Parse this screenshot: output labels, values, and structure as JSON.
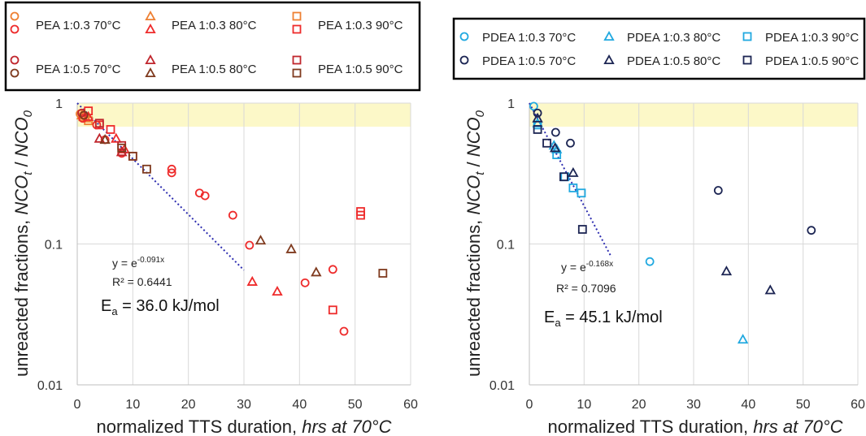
{
  "chart_data": [
    {
      "type": "scatter",
      "title": "",
      "xlabel": "normalized TTS duration,",
      "xlabel_italic": "hrs at 70°C",
      "ylabel": "unreacted fractions,",
      "ylabel_italic": "NCO",
      "ylabel_sub1": "t",
      "ylabel_sub2": "0",
      "yscale": "log",
      "xlim": [
        0,
        60
      ],
      "ylim": [
        0.01,
        1
      ],
      "xticks": [
        "0",
        "10",
        "20",
        "30",
        "40",
        "50",
        "60"
      ],
      "yticks": [
        "0.01",
        "0.1",
        "1"
      ],
      "grid": true,
      "highlight_band": {
        "ymin": 0.68,
        "ymax": 1,
        "color": "#fcf8c8"
      },
      "legend": {
        "position": "top",
        "columns": 3
      },
      "fit": {
        "x0": 0,
        "x1": 30,
        "k": 0.091,
        "color": "#2e2eb0"
      },
      "annotations": {
        "eq_prefix": "y = e",
        "eq_exp": "-0.091x",
        "r2": "R² = 0.6441",
        "ea_prefix": "E",
        "ea_sub": "a",
        "ea_value": " = 36.0 kJ/mol"
      },
      "series": [
        {
          "name": "PEA 1:0.3 70°C",
          "marker": "circle",
          "color": "#ee8033",
          "x": [
            0.5,
            1.5
          ],
          "y": [
            0.84,
            0.8
          ]
        },
        {
          "name": "PEA 1:0.3 80°C",
          "marker": "triangle",
          "color": "#ee8033",
          "x": [
            0.8,
            1.6
          ],
          "y": [
            0.82,
            0.78
          ]
        },
        {
          "name": "PEA 1:0.3 90°C",
          "marker": "square",
          "color": "#ee8033",
          "x": [
            1,
            2
          ],
          "y": [
            0.8,
            0.75
          ]
        },
        {
          "name": "",
          "marker": "circle",
          "color": "#ee2b2b",
          "x": [
            1,
            3.5,
            5,
            8,
            17,
            17,
            22,
            23,
            28,
            31,
            41,
            46,
            48
          ],
          "y": [
            0.78,
            0.7,
            0.55,
            0.44,
            0.34,
            0.32,
            0.23,
            0.22,
            0.16,
            0.098,
            0.053,
            0.066,
            0.024
          ]
        },
        {
          "name": "",
          "marker": "triangle",
          "color": "#ee2b2b",
          "x": [
            2,
            7,
            8,
            8.5,
            31.5,
            36
          ],
          "y": [
            0.8,
            0.56,
            0.45,
            0.47,
            0.054,
            0.046
          ]
        },
        {
          "name": "",
          "marker": "square",
          "color": "#ee2b2b",
          "x": [
            2,
            4,
            6,
            10,
            46,
            51,
            51
          ],
          "y": [
            0.88,
            0.7,
            0.65,
            0.42,
            0.034,
            0.17,
            0.16
          ]
        },
        {
          "name": "PEA 1:0.5 70°C",
          "marker": "circle",
          "color": "#c0262d",
          "x": [
            0.8
          ],
          "y": [
            0.85
          ]
        },
        {
          "name": "",
          "marker": "circle",
          "color": "#7f3a1e",
          "x": [
            1.2
          ],
          "y": [
            0.82
          ]
        },
        {
          "name": "PEA 1:0.5 80°C",
          "marker": "triangle",
          "color": "#c0262d",
          "x": [
            4,
            8
          ],
          "y": [
            0.56,
            0.45
          ]
        },
        {
          "name": "",
          "marker": "triangle",
          "color": "#7f3a1e",
          "x": [
            5,
            33,
            38.5,
            43
          ],
          "y": [
            0.55,
            0.106,
            0.092,
            0.063
          ]
        },
        {
          "name": "PEA 1:0.5 90°C",
          "marker": "square",
          "color": "#c0262d",
          "x": [
            4,
            8
          ],
          "y": [
            0.72,
            0.5
          ]
        },
        {
          "name": "",
          "marker": "square",
          "color": "#7f3a1e",
          "x": [
            8,
            10,
            12.5,
            55
          ],
          "y": [
            0.48,
            0.42,
            0.34,
            0.062
          ]
        }
      ]
    },
    {
      "type": "scatter",
      "title": "",
      "xlabel": "normalized TTS duration,",
      "xlabel_italic": "hrs at 70°C",
      "ylabel": "unreacted fractions,",
      "ylabel_italic": "NCO",
      "ylabel_sub1": "t",
      "ylabel_sub2": "0",
      "yscale": "log",
      "xlim": [
        0,
        60
      ],
      "ylim": [
        0.01,
        1
      ],
      "xticks": [
        "0",
        "10",
        "20",
        "30",
        "40",
        "50",
        "60"
      ],
      "yticks": [
        "0.01",
        "0.1",
        "1"
      ],
      "grid": true,
      "highlight_band": {
        "ymin": 0.68,
        "ymax": 1,
        "color": "#fcf8c8"
      },
      "legend": {
        "position": "top",
        "columns": 3
      },
      "fit": {
        "x0": 0,
        "x1": 15,
        "k": 0.168,
        "color": "#2e2eb0"
      },
      "annotations": {
        "eq_prefix": "y = e",
        "eq_exp": "-0.168x",
        "r2": "R² = 0.7096",
        "ea_prefix": "E",
        "ea_sub": "a",
        "ea_value": " =  45.1  kJ/mol"
      },
      "series": [
        {
          "name": "PDEA 1:0.3 70°C",
          "marker": "circle",
          "color": "#21a9e0",
          "x": [
            0.8,
            22
          ],
          "y": [
            0.95,
            0.075
          ]
        },
        {
          "name": "PDEA 1:0.3 80°C",
          "marker": "triangle",
          "color": "#21a9e0",
          "x": [
            1.5,
            4.5,
            5,
            39
          ],
          "y": [
            0.72,
            0.5,
            0.47,
            0.021
          ]
        },
        {
          "name": "PDEA 1:0.3 90°C",
          "marker": "square",
          "color": "#21a9e0",
          "x": [
            1.5,
            5,
            6.5,
            8,
            9.5
          ],
          "y": [
            0.7,
            0.43,
            0.3,
            0.25,
            0.23
          ]
        },
        {
          "name": "PDEA 1:0.5 70°C",
          "marker": "circle",
          "color": "#1c2553",
          "x": [
            1.5,
            4.8,
            7.5,
            34.5,
            51.5
          ],
          "y": [
            0.85,
            0.62,
            0.52,
            0.24,
            0.125
          ]
        },
        {
          "name": "PDEA 1:0.5 80°C",
          "marker": "triangle",
          "color": "#1c2553",
          "x": [
            1.5,
            4.7,
            8,
            36,
            44
          ],
          "y": [
            0.78,
            0.48,
            0.32,
            0.064,
            0.047
          ]
        },
        {
          "name": "PDEA 1:0.5 90°C",
          "marker": "square",
          "color": "#1c2553",
          "x": [
            1.5,
            3.2,
            6.3,
            9.7
          ],
          "y": [
            0.65,
            0.52,
            0.3,
            0.127
          ]
        }
      ]
    }
  ],
  "legends": [
    {
      "rows": [
        [
          {
            "label": "PEA 1:0.3 70°C",
            "marks": [
              {
                "m": "circle",
                "c": "#ee8033"
              },
              {
                "m": "circle",
                "c": "#ee2b2b"
              }
            ]
          },
          {
            "label": "PEA 1:0.3 80°C",
            "marks": [
              {
                "m": "triangle",
                "c": "#ee8033"
              },
              {
                "m": "triangle",
                "c": "#ee2b2b"
              }
            ]
          },
          {
            "label": "PEA 1:0.3 90°C",
            "marks": [
              {
                "m": "square",
                "c": "#ee8033"
              },
              {
                "m": "square",
                "c": "#ee2b2b"
              }
            ]
          }
        ],
        [
          {
            "label": "PEA 1:0.5 70°C",
            "marks": [
              {
                "m": "circle",
                "c": "#c0262d"
              },
              {
                "m": "circle",
                "c": "#7f3a1e"
              }
            ]
          },
          {
            "label": "PEA 1:0.5 80°C",
            "marks": [
              {
                "m": "triangle",
                "c": "#c0262d"
              },
              {
                "m": "triangle",
                "c": "#7f3a1e"
              }
            ]
          },
          {
            "label": "PEA 1:0.5 90°C",
            "marks": [
              {
                "m": "square",
                "c": "#c0262d"
              },
              {
                "m": "square",
                "c": "#7f3a1e"
              }
            ]
          }
        ]
      ]
    },
    {
      "rows": [
        [
          {
            "label": "PDEA 1:0.3 70°C",
            "marks": [
              {
                "m": "circle",
                "c": "#21a9e0"
              }
            ]
          },
          {
            "label": "PDEA 1:0.3 80°C",
            "marks": [
              {
                "m": "triangle",
                "c": "#21a9e0"
              }
            ]
          },
          {
            "label": "PDEA 1:0.3 90°C",
            "marks": [
              {
                "m": "square",
                "c": "#21a9e0"
              }
            ]
          }
        ],
        [
          {
            "label": "PDEA 1:0.5 70°C",
            "marks": [
              {
                "m": "circle",
                "c": "#1c2553"
              }
            ]
          },
          {
            "label": "PDEA 1:0.5 80°C",
            "marks": [
              {
                "m": "triangle",
                "c": "#1c2553"
              }
            ]
          },
          {
            "label": "PDEA 1:0.5 90°C",
            "marks": [
              {
                "m": "square",
                "c": "#1c2553"
              }
            ]
          }
        ]
      ]
    }
  ]
}
